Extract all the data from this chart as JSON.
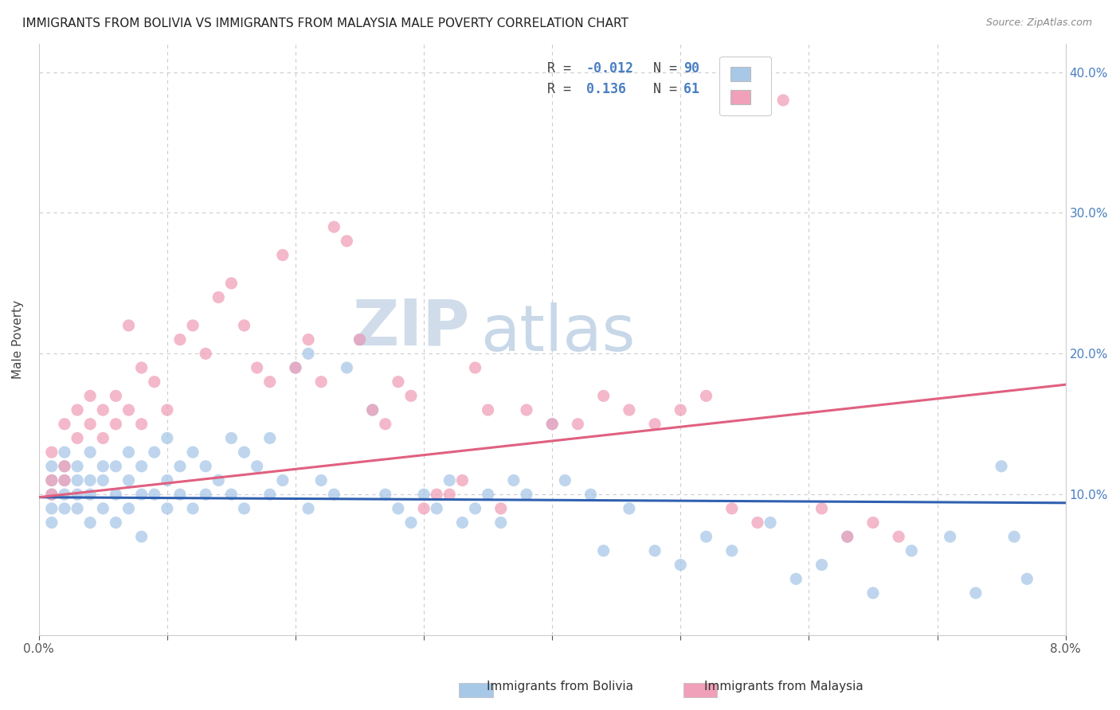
{
  "title": "IMMIGRANTS FROM BOLIVIA VS IMMIGRANTS FROM MALAYSIA MALE POVERTY CORRELATION CHART",
  "source": "Source: ZipAtlas.com",
  "ylabel": "Male Poverty",
  "xlim": [
    0.0,
    0.08
  ],
  "ylim": [
    0.0,
    0.42
  ],
  "bolivia_color": "#a8c8e8",
  "malaysia_color": "#f0a0b8",
  "bolivia_line_color": "#3060b0",
  "malaysia_line_color": "#e06080",
  "bolivia_R": -0.012,
  "bolivia_N": 90,
  "malaysia_R": 0.136,
  "malaysia_N": 61,
  "legend_label_bolivia": "Immigrants from Bolivia",
  "legend_label_malaysia": "Immigrants from Malaysia",
  "watermark_zip": "ZIP",
  "watermark_atlas": "atlas",
  "background_color": "#ffffff",
  "grid_color": "#cccccc",
  "right_axis_color": "#4a7fc0",
  "bolivia_scatter_x": [
    0.001,
    0.001,
    0.001,
    0.001,
    0.001,
    0.002,
    0.002,
    0.002,
    0.002,
    0.002,
    0.003,
    0.003,
    0.003,
    0.003,
    0.004,
    0.004,
    0.004,
    0.004,
    0.005,
    0.005,
    0.005,
    0.006,
    0.006,
    0.006,
    0.007,
    0.007,
    0.007,
    0.008,
    0.008,
    0.008,
    0.009,
    0.009,
    0.01,
    0.01,
    0.01,
    0.011,
    0.011,
    0.012,
    0.012,
    0.013,
    0.013,
    0.014,
    0.015,
    0.015,
    0.016,
    0.016,
    0.017,
    0.018,
    0.018,
    0.019,
    0.02,
    0.021,
    0.021,
    0.022,
    0.023,
    0.024,
    0.025,
    0.026,
    0.027,
    0.028,
    0.029,
    0.03,
    0.031,
    0.032,
    0.033,
    0.034,
    0.035,
    0.036,
    0.037,
    0.038,
    0.04,
    0.041,
    0.043,
    0.044,
    0.046,
    0.048,
    0.05,
    0.052,
    0.054,
    0.057,
    0.059,
    0.061,
    0.063,
    0.065,
    0.068,
    0.071,
    0.073,
    0.075,
    0.076,
    0.077
  ],
  "bolivia_scatter_y": [
    0.12,
    0.11,
    0.1,
    0.09,
    0.08,
    0.13,
    0.12,
    0.11,
    0.1,
    0.09,
    0.12,
    0.11,
    0.1,
    0.09,
    0.13,
    0.11,
    0.1,
    0.08,
    0.12,
    0.11,
    0.09,
    0.12,
    0.1,
    0.08,
    0.13,
    0.11,
    0.09,
    0.12,
    0.1,
    0.07,
    0.13,
    0.1,
    0.14,
    0.11,
    0.09,
    0.12,
    0.1,
    0.13,
    0.09,
    0.12,
    0.1,
    0.11,
    0.14,
    0.1,
    0.13,
    0.09,
    0.12,
    0.14,
    0.1,
    0.11,
    0.19,
    0.2,
    0.09,
    0.11,
    0.1,
    0.19,
    0.21,
    0.16,
    0.1,
    0.09,
    0.08,
    0.1,
    0.09,
    0.11,
    0.08,
    0.09,
    0.1,
    0.08,
    0.11,
    0.1,
    0.15,
    0.11,
    0.1,
    0.06,
    0.09,
    0.06,
    0.05,
    0.07,
    0.06,
    0.08,
    0.04,
    0.05,
    0.07,
    0.03,
    0.06,
    0.07,
    0.03,
    0.12,
    0.07,
    0.04
  ],
  "malaysia_scatter_x": [
    0.001,
    0.001,
    0.001,
    0.002,
    0.002,
    0.002,
    0.003,
    0.003,
    0.004,
    0.004,
    0.005,
    0.005,
    0.006,
    0.006,
    0.007,
    0.007,
    0.008,
    0.008,
    0.009,
    0.01,
    0.011,
    0.012,
    0.013,
    0.014,
    0.015,
    0.016,
    0.017,
    0.018,
    0.019,
    0.02,
    0.021,
    0.022,
    0.023,
    0.024,
    0.025,
    0.026,
    0.027,
    0.028,
    0.029,
    0.03,
    0.031,
    0.032,
    0.033,
    0.034,
    0.035,
    0.036,
    0.038,
    0.04,
    0.042,
    0.044,
    0.046,
    0.048,
    0.05,
    0.052,
    0.054,
    0.056,
    0.058,
    0.061,
    0.063,
    0.065,
    0.067
  ],
  "malaysia_scatter_y": [
    0.13,
    0.11,
    0.1,
    0.15,
    0.12,
    0.11,
    0.16,
    0.14,
    0.17,
    0.15,
    0.16,
    0.14,
    0.17,
    0.15,
    0.22,
    0.16,
    0.19,
    0.15,
    0.18,
    0.16,
    0.21,
    0.22,
    0.2,
    0.24,
    0.25,
    0.22,
    0.19,
    0.18,
    0.27,
    0.19,
    0.21,
    0.18,
    0.29,
    0.28,
    0.21,
    0.16,
    0.15,
    0.18,
    0.17,
    0.09,
    0.1,
    0.1,
    0.11,
    0.19,
    0.16,
    0.09,
    0.16,
    0.15,
    0.15,
    0.17,
    0.16,
    0.15,
    0.16,
    0.17,
    0.09,
    0.08,
    0.38,
    0.09,
    0.07,
    0.08,
    0.07
  ],
  "bolivia_line_x": [
    0.0,
    0.08
  ],
  "bolivia_line_y": [
    0.098,
    0.094
  ],
  "malaysia_line_x": [
    0.0,
    0.08
  ],
  "malaysia_line_y": [
    0.098,
    0.178
  ]
}
